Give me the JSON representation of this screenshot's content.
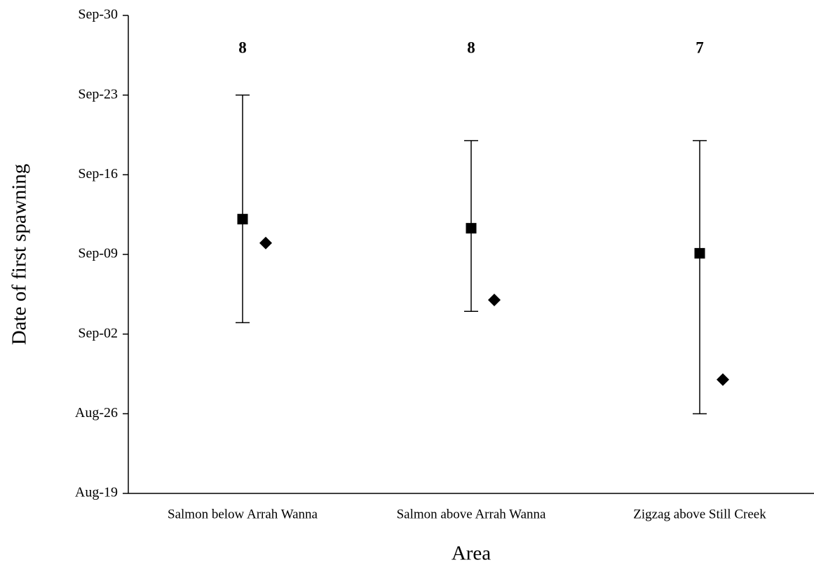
{
  "chart_data": {
    "type": "errorbar",
    "y_label": "Date of first spawning",
    "x_label": "Area",
    "categories": [
      "Salmon below Arrah Wanna",
      "Salmon above Arrah Wanna",
      "Zigzag above Still Creek"
    ],
    "counts": [
      8,
      8,
      7
    ],
    "series": [
      {
        "marker": "square",
        "color": "#000000",
        "values": [
          255.1,
          254.3,
          252.1
        ],
        "low": [
          246,
          247,
          238
        ],
        "high": [
          266,
          262,
          262
        ]
      },
      {
        "marker": "diamond",
        "color": "#000000",
        "values": [
          253,
          248,
          241
        ]
      }
    ],
    "ylim": [
      231,
      273
    ],
    "yticks": [
      {
        "value": 231,
        "label": "Aug-19"
      },
      {
        "value": 238,
        "label": "Aug-26"
      },
      {
        "value": 245,
        "label": "Sep-02"
      },
      {
        "value": 252,
        "label": "Sep-09"
      },
      {
        "value": 259,
        "label": "Sep-16"
      },
      {
        "value": 266,
        "label": "Sep-23"
      },
      {
        "value": 273,
        "label": "Sep-30"
      }
    ]
  }
}
